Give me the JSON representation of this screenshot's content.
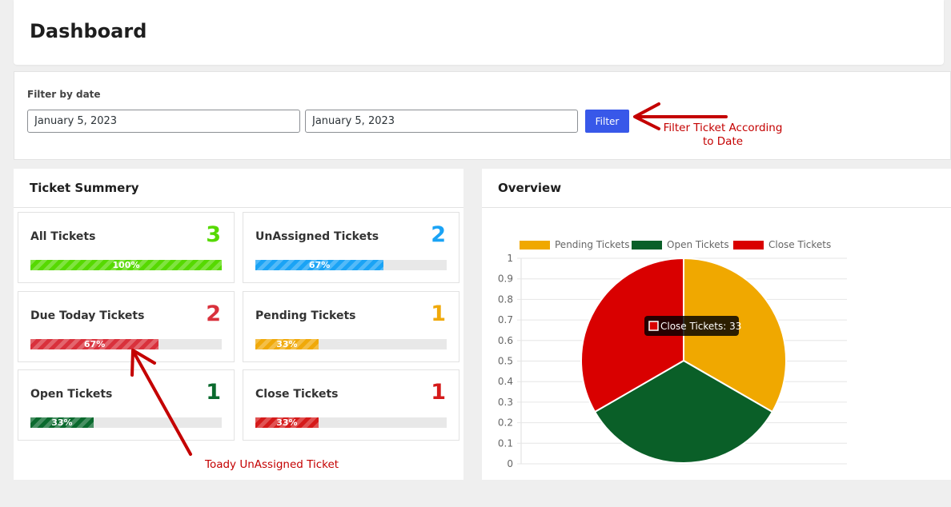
{
  "header": {
    "title": "Dashboard"
  },
  "filter": {
    "label": "Filter by date",
    "start_value": "January 5, 2023",
    "end_value": "January 5, 2023",
    "button_label": "Filter"
  },
  "summary": {
    "title": "Ticket Summery",
    "tiles": [
      {
        "label": "All Tickets",
        "count": "3",
        "percent_label": "100%",
        "fill": 1.0,
        "color": "#56d900"
      },
      {
        "label": "UnAssigned Tickets",
        "count": "2",
        "percent_label": "67%",
        "fill": 0.67,
        "color": "#1aa3f5"
      },
      {
        "label": "Due Today Tickets",
        "count": "2",
        "percent_label": "67%",
        "fill": 0.67,
        "color": "#d9313c"
      },
      {
        "label": "Pending Tickets",
        "count": "1",
        "percent_label": "33%",
        "fill": 0.33,
        "color": "#f0a90a"
      },
      {
        "label": "Open Tickets",
        "count": "1",
        "percent_label": "33%",
        "fill": 0.33,
        "color": "#0a6a2e"
      },
      {
        "label": "Close Tickets",
        "count": "1",
        "percent_label": "33%",
        "fill": 0.33,
        "color": "#d51a1a"
      }
    ]
  },
  "overview": {
    "title": "Overview",
    "tooltip": "Close Tickets: 33"
  },
  "chart_data": {
    "type": "pie",
    "title": "",
    "categories": [
      "Pending Tickets",
      "Open Tickets",
      "Close Tickets"
    ],
    "values": [
      33,
      33,
      33
    ],
    "colors": [
      "#f0a800",
      "#0a5f28",
      "#d90000"
    ],
    "legend_position": "top",
    "yticks": [
      "1",
      "0.9",
      "0.8",
      "0.7",
      "0.6",
      "0.5",
      "0.4",
      "0.3",
      "0.2",
      "0.1",
      "0"
    ],
    "grid": true
  },
  "annotations": {
    "filter_note_line1": "Filter Ticket According",
    "filter_note_line2": "to Date",
    "bottom_note": "Toady UnAssigned Ticket"
  },
  "colors": {
    "accent": "#3858e9",
    "annotation": "#c40000"
  }
}
